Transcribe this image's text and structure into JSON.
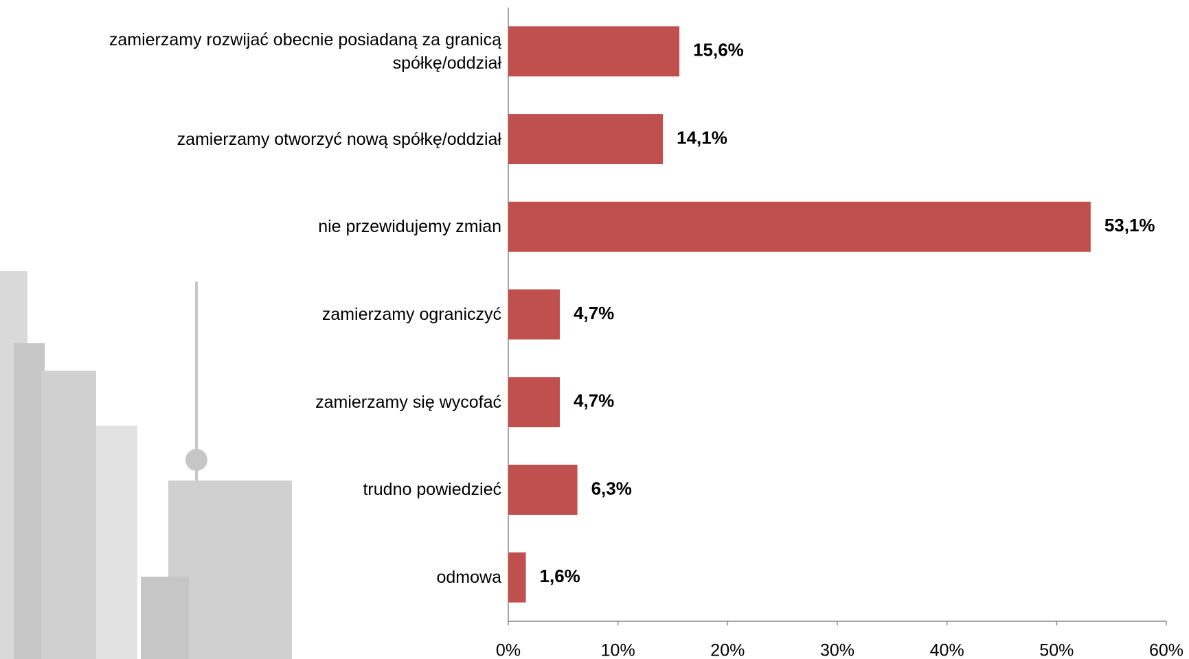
{
  "chart_data": {
    "type": "bar",
    "orientation": "horizontal",
    "categories": [
      "zamierzamy rozwijać obecnie posiadaną za granicą spółkę/oddział",
      "zamierzamy otworzyć nową spółkę/oddział",
      "nie przewidujemy zmian",
      "zamierzamy ograniczyć",
      "zamierzamy się wycofać",
      "trudno powiedzieć",
      "odmowa"
    ],
    "values": [
      15.6,
      14.1,
      53.1,
      4.7,
      4.7,
      6.3,
      1.6
    ],
    "value_labels": [
      "15,6%",
      "14,1%",
      "53,1%",
      "4,7%",
      "4,7%",
      "6,3%",
      "1,6%"
    ],
    "color": "#c0504d",
    "xlim": [
      0,
      60
    ],
    "xticks": [
      {
        "value": 0,
        "label": "0%"
      },
      {
        "value": 10,
        "label": "10%"
      },
      {
        "value": 20,
        "label": "20%"
      },
      {
        "value": 30,
        "label": "30%"
      },
      {
        "value": 40,
        "label": "40%"
      },
      {
        "value": 50,
        "label": "50%"
      },
      {
        "value": 60,
        "label": "60%"
      }
    ],
    "grid": false
  }
}
